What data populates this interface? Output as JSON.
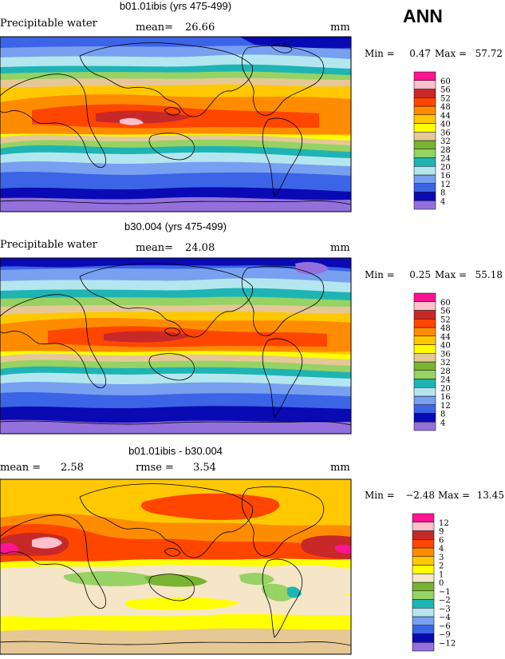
{
  "season": "ANN",
  "units": "mm",
  "panels": [
    {
      "title": "b01.01ibis (yrs 475-499)",
      "field_label": "Precipitable water",
      "stat1_label": "mean=",
      "stat1_value": "26.66",
      "stat2_label": "",
      "stat2_value": "",
      "min_label": "Min =",
      "min_value": "0.47",
      "max_label": "Max =",
      "max_value": "57.72"
    },
    {
      "title": "b30.004 (yrs 475-499)",
      "field_label": "Precipitable water",
      "stat1_label": "mean=",
      "stat1_value": "24.08",
      "stat2_label": "",
      "stat2_value": "",
      "min_label": "Min =",
      "min_value": "0.25",
      "max_label": "Max =",
      "max_value": "55.18"
    },
    {
      "title": "b01.01ibis - b30.004",
      "field_label": "",
      "stat1_label": "mean =",
      "stat1_value": "2.58",
      "stat2_label": "rmse =",
      "stat2_value": "3.54",
      "min_label": "Min =",
      "min_value": "−2.48",
      "max_label": "Max =",
      "max_value": "13.45"
    }
  ],
  "chart_data": [
    {
      "type": "heatmap",
      "title": "b01.01ibis (yrs 475-499)",
      "variable": "Precipitable water",
      "units": "mm",
      "mean": 26.66,
      "min": 0.47,
      "max": 57.72,
      "levels": [
        4,
        8,
        12,
        16,
        20,
        24,
        28,
        32,
        36,
        40,
        44,
        48,
        52,
        56,
        60
      ],
      "colors": [
        "#9370db",
        "#0a0ab4",
        "#3c64e6",
        "#78a0f0",
        "#b4e6f0",
        "#1eb4b4",
        "#96d264",
        "#78b432",
        "#e6c896",
        "#ffff00",
        "#ffc800",
        "#ff8c00",
        "#ff4600",
        "#c82828",
        "#ffc0cb",
        "#ff1493"
      ]
    },
    {
      "type": "heatmap",
      "title": "b30.004 (yrs 475-499)",
      "variable": "Precipitable water",
      "units": "mm",
      "mean": 24.08,
      "min": 0.25,
      "max": 55.18,
      "levels": [
        4,
        8,
        12,
        16,
        20,
        24,
        28,
        32,
        36,
        40,
        44,
        48,
        52,
        56,
        60
      ],
      "colors": [
        "#9370db",
        "#0a0ab4",
        "#3c64e6",
        "#78a0f0",
        "#b4e6f0",
        "#1eb4b4",
        "#96d264",
        "#78b432",
        "#e6c896",
        "#ffff00",
        "#ffc800",
        "#ff8c00",
        "#ff4600",
        "#c82828",
        "#ffc0cb",
        "#ff1493"
      ]
    },
    {
      "type": "heatmap",
      "title": "b01.01ibis - b30.004",
      "units": "mm",
      "mean": 2.58,
      "rmse": 3.54,
      "min": -2.48,
      "max": 13.45,
      "levels": [
        "−12",
        "−9",
        "−6",
        "−4",
        "−3",
        "−2",
        "−1",
        "0",
        "1",
        "2",
        "3",
        "4",
        "6",
        "9",
        "12"
      ],
      "colors": [
        "#9370db",
        "#0a0ab4",
        "#3c64e6",
        "#78a0f0",
        "#b4e6f0",
        "#1eb4b4",
        "#96d264",
        "#78b432",
        "#f5e6c8",
        "#ffff00",
        "#ffc800",
        "#ff8c00",
        "#ff4600",
        "#c82828",
        "#ffc0cb",
        "#ff1493"
      ]
    }
  ]
}
